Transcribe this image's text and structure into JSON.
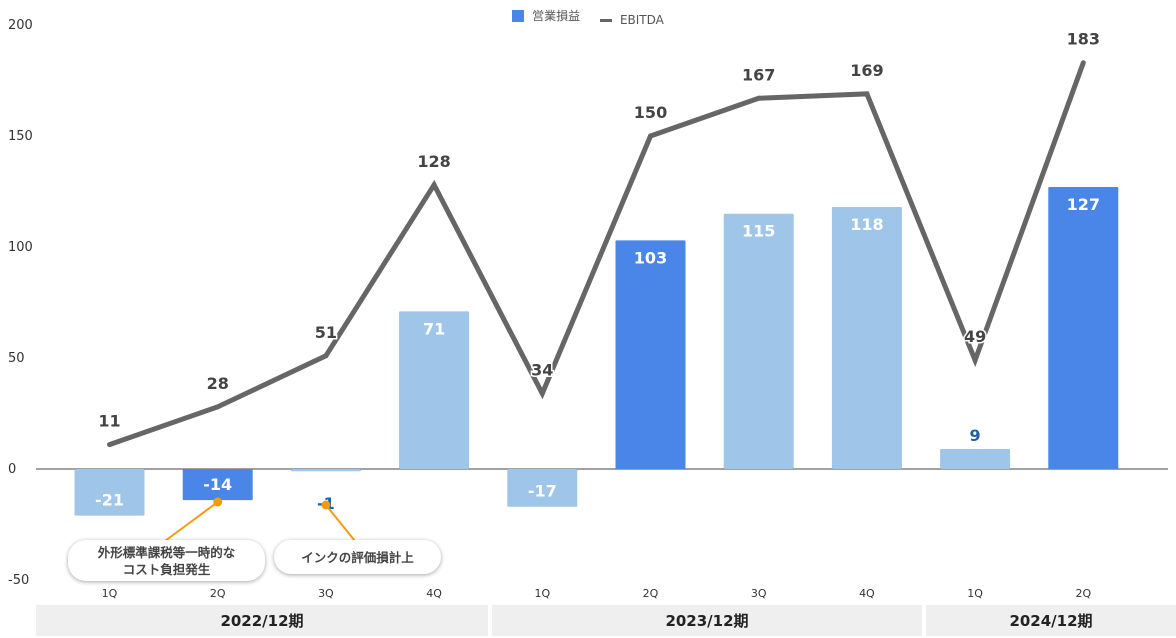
{
  "chart_data": {
    "type": "bar",
    "categories": [
      "1Q",
      "2Q",
      "3Q",
      "4Q",
      "1Q",
      "2Q",
      "3Q",
      "4Q",
      "1Q",
      "2Q"
    ],
    "series": [
      {
        "name": "営業損益",
        "type": "bar",
        "values": [
          -21,
          -14,
          -1,
          71,
          -17,
          103,
          115,
          118,
          9,
          127
        ]
      },
      {
        "name": "EBITDA",
        "type": "line",
        "values": [
          11,
          28,
          51,
          128,
          34,
          150,
          167,
          169,
          49,
          183
        ]
      }
    ],
    "bar_highlight": [
      false,
      true,
      false,
      false,
      false,
      true,
      false,
      false,
      false,
      true
    ],
    "ylim": [
      -50,
      200
    ],
    "yticks": [
      -50,
      0,
      50,
      100,
      150,
      200
    ],
    "legend_position": "top-center",
    "grid": false,
    "colors": {
      "bar_light": "#9fc5e8",
      "bar_dark": "#4a86e8",
      "line": "#666666",
      "highlight_label": "#1f5fa8"
    },
    "annotations": [
      {
        "category_index": 1,
        "text": "外形標準課税等一時的な\nコスト負担発生"
      },
      {
        "category_index": 2,
        "text": "インクの評価損計上"
      }
    ],
    "period_groups": [
      {
        "label": "2022/12期",
        "start": 0,
        "end": 3
      },
      {
        "label": "2023/12期",
        "start": 4,
        "end": 7
      },
      {
        "label": "2024/12期",
        "start": 8,
        "end": 9
      }
    ]
  }
}
